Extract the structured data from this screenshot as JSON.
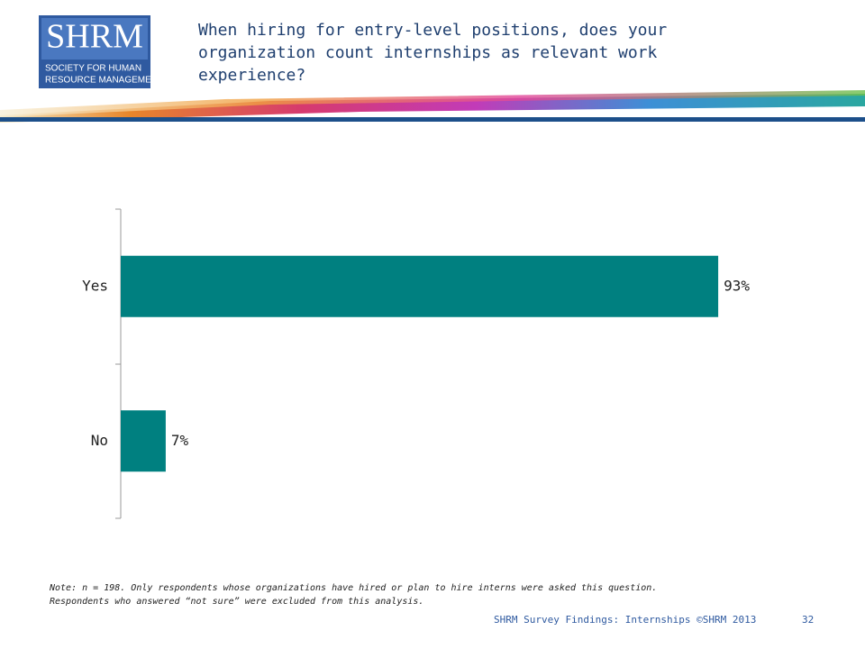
{
  "header": {
    "logo": "SHRM",
    "logo_subtitle_1": "SOCIETY FOR HUMAN",
    "logo_subtitle_2": "RESOURCE MANAGEMENT"
  },
  "chart_data": {
    "type": "bar",
    "orientation": "horizontal",
    "title_lines": [
      "When hiring for entry-level positions, does your",
      "organization count internships as relevant work",
      "experience?"
    ],
    "categories": [
      "Yes",
      "No"
    ],
    "values": [
      93,
      7
    ],
    "value_labels": [
      "93%",
      "7%"
    ],
    "color": "#008080"
  },
  "note": [
    "Note: n = 198. Only respondents whose organizations have hired or plan to hire interns were asked this question.",
    "Respondents who answered “not sure” were excluded from this analysis."
  ],
  "footer": {
    "source": "SHRM Survey Findings: Internships ©SHRM 2013",
    "page": "32"
  }
}
